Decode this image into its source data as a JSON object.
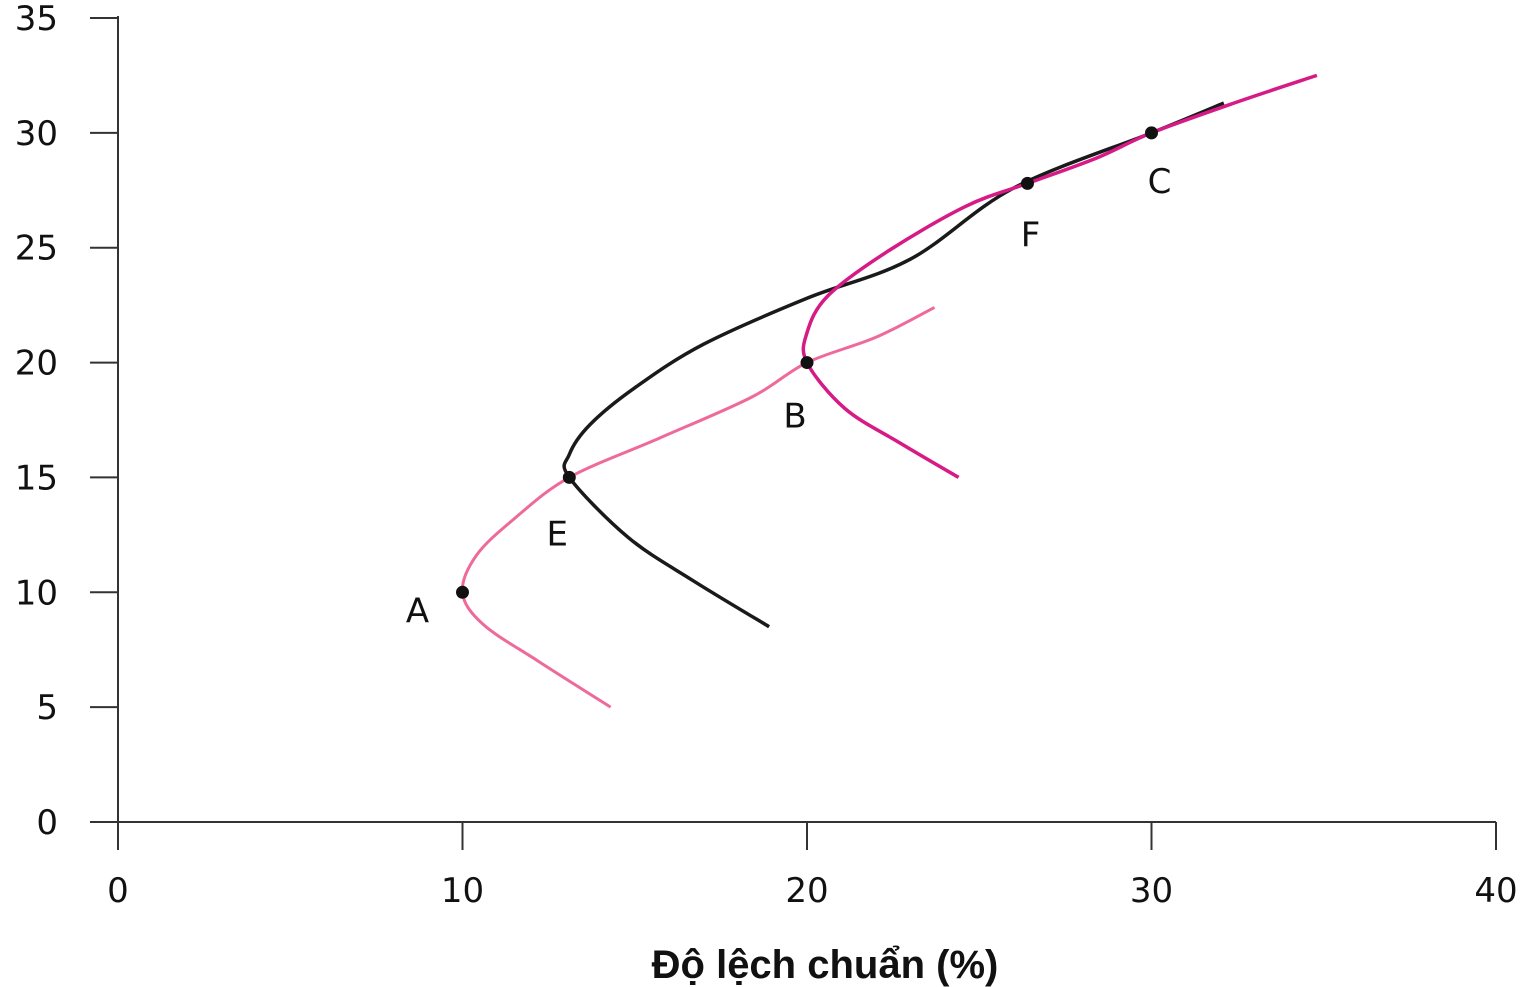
{
  "chart_data": {
    "type": "line",
    "title": "",
    "xlabel": "Độ lệch chuẩn (%)",
    "ylabel": "",
    "xlim": [
      0,
      40
    ],
    "ylim": [
      0,
      35
    ],
    "xticks": [
      "0",
      "10",
      "20",
      "30",
      "40"
    ],
    "yticks": [
      "0",
      "5",
      "10",
      "15",
      "20",
      "25",
      "30",
      "35"
    ],
    "grid": false,
    "legend": "none",
    "series": [
      {
        "color": "#ee6a9a",
        "points": [
          [
            14.3,
            5.0
          ],
          [
            12.2,
            7.0
          ],
          [
            10.6,
            8.6
          ],
          [
            10.0,
            10.0
          ],
          [
            10.4,
            11.6
          ],
          [
            11.5,
            13.2
          ],
          [
            13.1,
            15.0
          ],
          [
            15.7,
            16.7
          ],
          [
            18.4,
            18.5
          ],
          [
            20.0,
            20.0
          ],
          [
            22.0,
            21.1
          ],
          [
            23.7,
            22.4
          ]
        ]
      },
      {
        "color": "#1a1a1a",
        "points": [
          [
            18.9,
            8.5
          ],
          [
            16.7,
            10.5
          ],
          [
            14.8,
            12.4
          ],
          [
            13.1,
            15.0
          ],
          [
            13.1,
            16.0
          ],
          [
            13.7,
            17.3
          ],
          [
            15.0,
            18.9
          ],
          [
            17.0,
            20.8
          ],
          [
            20.0,
            22.8
          ],
          [
            23.0,
            24.5
          ],
          [
            26.0,
            27.6
          ],
          [
            30.0,
            30.0
          ],
          [
            32.1,
            31.3
          ]
        ]
      },
      {
        "color": "#d61a86",
        "points": [
          [
            24.4,
            15.0
          ],
          [
            22.7,
            16.5
          ],
          [
            21.1,
            18.0
          ],
          [
            20.0,
            20.0
          ],
          [
            20.0,
            21.3
          ],
          [
            20.6,
            22.9
          ],
          [
            22.3,
            24.8
          ],
          [
            24.6,
            26.8
          ],
          [
            26.4,
            27.8
          ],
          [
            28.4,
            28.9
          ],
          [
            30.0,
            30.0
          ],
          [
            32.4,
            31.3
          ],
          [
            34.8,
            32.5
          ]
        ]
      }
    ],
    "points": [
      {
        "label": "A",
        "x": 10.0,
        "y": 10.0
      },
      {
        "label": "E",
        "x": 13.1,
        "y": 15.0
      },
      {
        "label": "B",
        "x": 20.0,
        "y": 20.0
      },
      {
        "label": "F",
        "x": 26.4,
        "y": 27.8
      },
      {
        "label": "C",
        "x": 30.0,
        "y": 30.0
      }
    ]
  }
}
